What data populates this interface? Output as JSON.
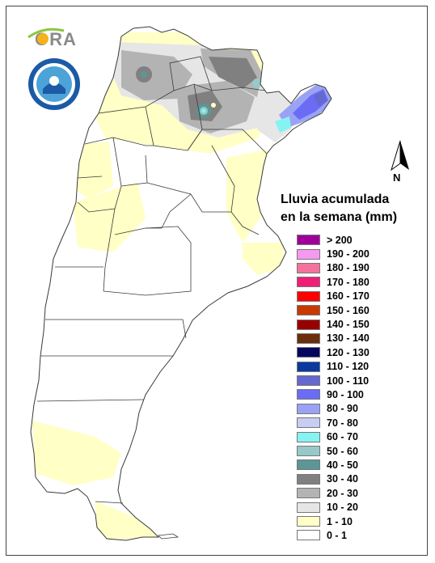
{
  "map": {
    "logo_text": "ORA",
    "seal_text": "SERVICIO METEOROLÓGICO NACIONAL · ARGENTINA",
    "north_label": "N",
    "legend_title_line1": "Lluvia acumulada",
    "legend_title_line2": "en la semana (mm)",
    "legend": [
      {
        "label": "> 200",
        "color": "#a0009a"
      },
      {
        "label": "190 - 200",
        "color": "#f59af0"
      },
      {
        "label": "180 - 190",
        "color": "#f4739c"
      },
      {
        "label": "170 - 180",
        "color": "#ef1f78"
      },
      {
        "label": "160 - 170",
        "color": "#ff0000"
      },
      {
        "label": "150 - 160",
        "color": "#c83a00"
      },
      {
        "label": "140 - 150",
        "color": "#990000"
      },
      {
        "label": "130 - 140",
        "color": "#6b2e0c"
      },
      {
        "label": "120 - 130",
        "color": "#06065e"
      },
      {
        "label": "110 - 120",
        "color": "#0a3aa0"
      },
      {
        "label": "100 - 110",
        "color": "#6468cf"
      },
      {
        "label": "90 - 100",
        "color": "#6a6cf5"
      },
      {
        "label": "80 - 90",
        "color": "#9aa2f5"
      },
      {
        "label": "70 - 80",
        "color": "#c8cdf3"
      },
      {
        "label": "60 - 70",
        "color": "#86f3f3"
      },
      {
        "label": "50 - 60",
        "color": "#97c9c9"
      },
      {
        "label": "40 - 50",
        "color": "#5c9696"
      },
      {
        "label": "30 - 40",
        "color": "#808080"
      },
      {
        "label": "20 - 30",
        "color": "#b3b3b3"
      },
      {
        "label": "10 - 20",
        "color": "#e6e6e6"
      },
      {
        "label": "1 - 10",
        "color": "#ffffc6"
      },
      {
        "label": "0 - 1",
        "color": "#ffffff"
      }
    ]
  }
}
